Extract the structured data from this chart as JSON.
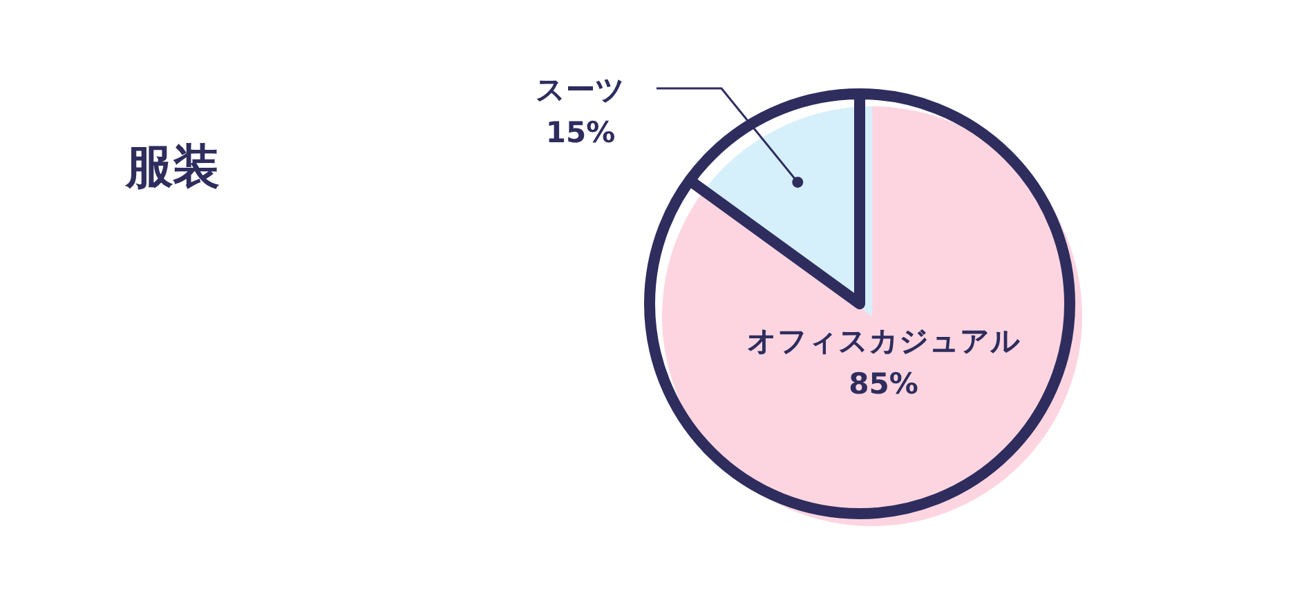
{
  "chart_data": {
    "type": "pie",
    "title": "服装",
    "categories": [
      "スーツ",
      "オフィスカジュアル"
    ],
    "values": [
      15,
      85
    ],
    "colors": [
      "#d6f0fb",
      "#fdd5e0"
    ],
    "value_labels": [
      "15%",
      "85%"
    ],
    "legend": false
  }
}
